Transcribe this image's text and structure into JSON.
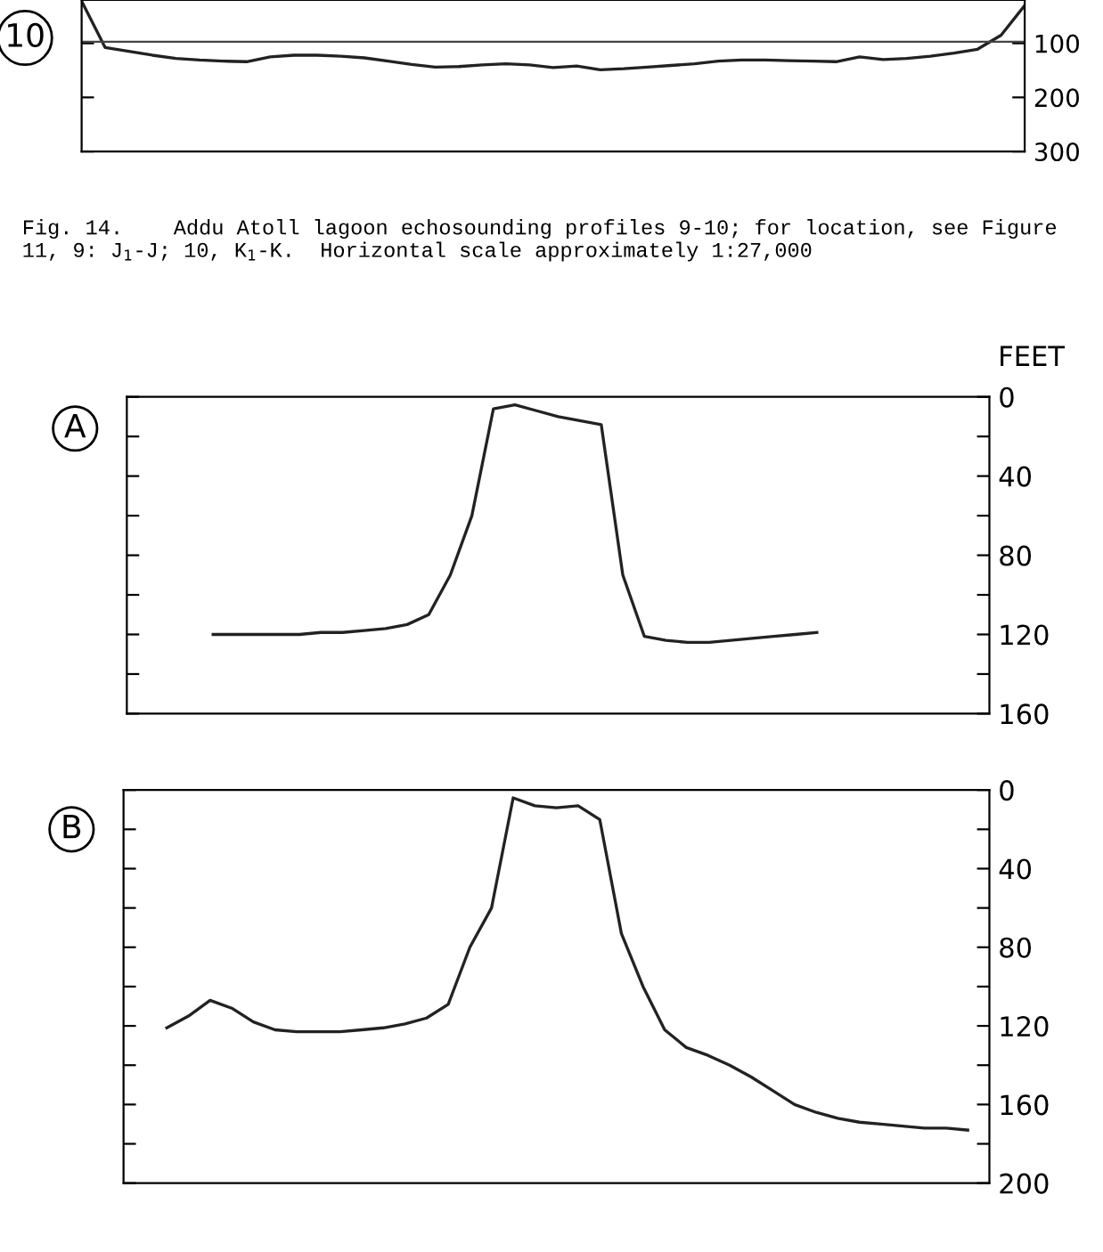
{
  "chart_data": [
    {
      "type": "line",
      "title": "10",
      "categories": [
        null,
        null,
        null,
        null,
        null,
        null,
        null,
        null,
        null,
        null,
        null,
        null,
        null,
        null,
        null,
        null,
        null,
        null,
        null,
        null,
        null,
        null,
        null,
        null,
        null,
        null,
        null,
        null,
        null,
        null,
        null,
        null,
        null,
        null,
        null,
        null,
        null,
        null,
        null,
        null,
        null
      ],
      "series": [
        {
          "color": "#222222",
          "values": [
            22,
            108,
            115,
            122,
            128,
            131,
            133,
            134,
            125,
            122,
            122,
            124,
            127,
            133,
            139,
            144,
            143,
            140,
            138,
            140,
            145,
            142,
            149,
            147,
            144,
            141,
            138,
            133,
            131,
            131,
            132,
            133,
            134,
            125,
            130,
            128,
            124,
            118,
            111,
            85,
            30
          ]
        }
      ],
      "ylim": [
        300,
        20
      ],
      "yticks": [
        100,
        200,
        300
      ],
      "tick_labels": "y",
      "grid": false,
      "legend": false,
      "ref_lines": [
        {
          "axis": "y",
          "value": 97,
          "color": "#444444"
        }
      ],
      "annotations": [
        "Fig. 14.    Addu Atoll lagoon echosounding profiles 9-10; for location, see Figure 11, 9: J$_{1}$-J; 10, K$_{1}$-K.  Horizontal scale approximately 1:27,000"
      ]
    },
    {
      "type": "line",
      "title": "A",
      "ylabel": "FEET",
      "categories": [
        null,
        null,
        null,
        null,
        null,
        null,
        null,
        null,
        null,
        null,
        null,
        null,
        null,
        null,
        null,
        null,
        null,
        null,
        null,
        null,
        null,
        null,
        null,
        null,
        null,
        null,
        null,
        null,
        null,
        null,
        null,
        null,
        null,
        null,
        null,
        null,
        null,
        null,
        null,
        null,
        null
      ],
      "series": [
        {
          "color": "#222222",
          "values": [
            null,
            null,
            null,
            null,
            120,
            120,
            120,
            120,
            120,
            119,
            119,
            118,
            117,
            115,
            110,
            90,
            60,
            6,
            4,
            7,
            10,
            12,
            14,
            90,
            121,
            123,
            124,
            124,
            123,
            122,
            121,
            120,
            119,
            null,
            null,
            null,
            null,
            null,
            null,
            null,
            null
          ]
        }
      ],
      "ylim": [
        160,
        0
      ],
      "yticks": [
        0,
        {
          "value": 20,
          "label": null
        },
        40,
        {
          "value": 60,
          "label": null
        },
        80,
        {
          "value": 100,
          "label": null
        },
        120,
        {
          "value": 140,
          "label": null
        },
        160
      ],
      "tick_labels": "y",
      "grid": false,
      "legend": false
    },
    {
      "type": "line",
      "title": "B",
      "categories": [
        null,
        null,
        null,
        null,
        null,
        null,
        null,
        null,
        null,
        null,
        null,
        null,
        null,
        null,
        null,
        null,
        null,
        null,
        null,
        null,
        null,
        null,
        null,
        null,
        null,
        null,
        null,
        null,
        null,
        null,
        null,
        null,
        null,
        null,
        null,
        null,
        null,
        null,
        null,
        null,
        null
      ],
      "series": [
        {
          "color": "#222222",
          "values": [
            null,
            null,
            121,
            115,
            107,
            111,
            118,
            122,
            123,
            123,
            123,
            122,
            121,
            119,
            116,
            109,
            80,
            60,
            4,
            8,
            9,
            8,
            15,
            73,
            100,
            122,
            131,
            135,
            140,
            146,
            153,
            160,
            164,
            167,
            169,
            170,
            171,
            172,
            172,
            173,
            null
          ]
        }
      ],
      "ylim": [
        200,
        0
      ],
      "yticks": [
        0,
        {
          "value": 20,
          "label": null
        },
        40,
        {
          "value": 60,
          "label": null
        },
        80,
        {
          "value": 100,
          "label": null
        },
        120,
        {
          "value": 140,
          "label": null
        },
        160,
        {
          "value": 180,
          "label": null
        },
        200
      ],
      "tick_labels": "y",
      "grid": false,
      "legend": false
    }
  ]
}
